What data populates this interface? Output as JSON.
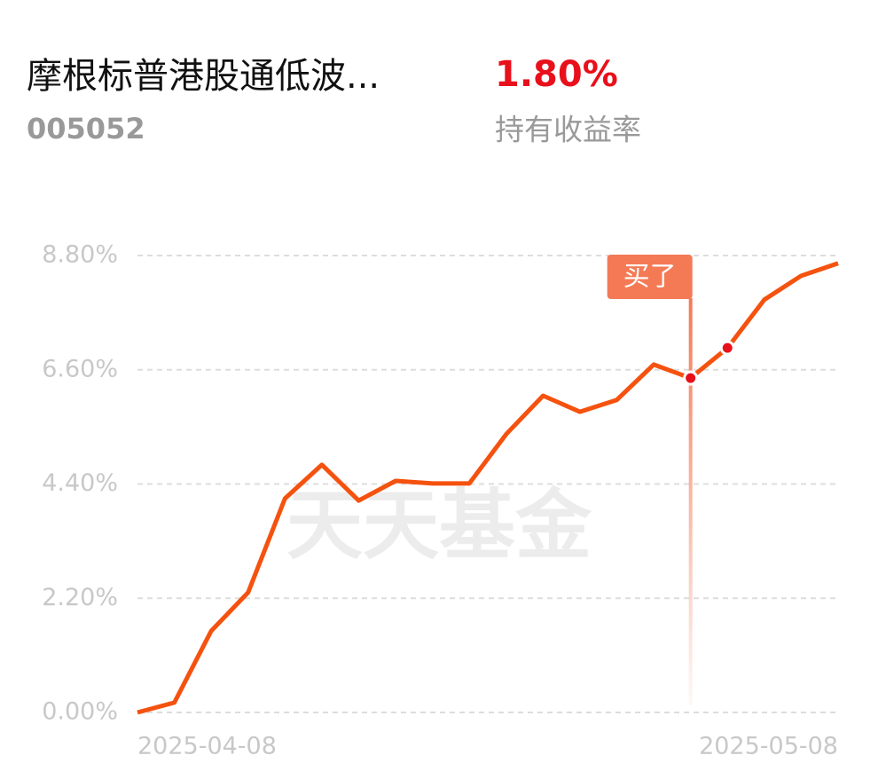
{
  "header": {
    "name": "摩根标普港股通低波...",
    "code": "005052",
    "return_value": "1.80%",
    "return_label": "持有收益率"
  },
  "chart_data": {
    "type": "line",
    "watermark": "天天基金",
    "categories": [
      "2025-04-08",
      null,
      null,
      null,
      null,
      null,
      null,
      null,
      null,
      null,
      null,
      null,
      null,
      null,
      null,
      null,
      null,
      null,
      null,
      "2025-05-08"
    ],
    "series": [
      {
        "name": "持有收益率",
        "color": "#f5520f",
        "values": [
          0,
          0.19,
          1.57,
          2.31,
          4.12,
          4.77,
          4.08,
          4.46,
          4.41,
          4.41,
          5.36,
          6.1,
          5.79,
          6.02,
          6.7,
          6.44,
          7.02,
          7.95,
          8.41,
          8.65
        ]
      }
    ],
    "ylim": [
      0,
      8.8
    ],
    "yticks": [
      {
        "value": 0,
        "label": "0.00%"
      },
      {
        "value": 2.2,
        "label": "2.20%"
      },
      {
        "value": 4.4,
        "label": "4.40%"
      },
      {
        "value": 6.6,
        "label": "6.60%"
      },
      {
        "value": 8.8,
        "label": "8.80%"
      }
    ],
    "grid": true,
    "marked_points": [
      15,
      16
    ],
    "annotations": [
      {
        "text": "买了",
        "index": 15,
        "color": "#f47a55"
      }
    ]
  }
}
